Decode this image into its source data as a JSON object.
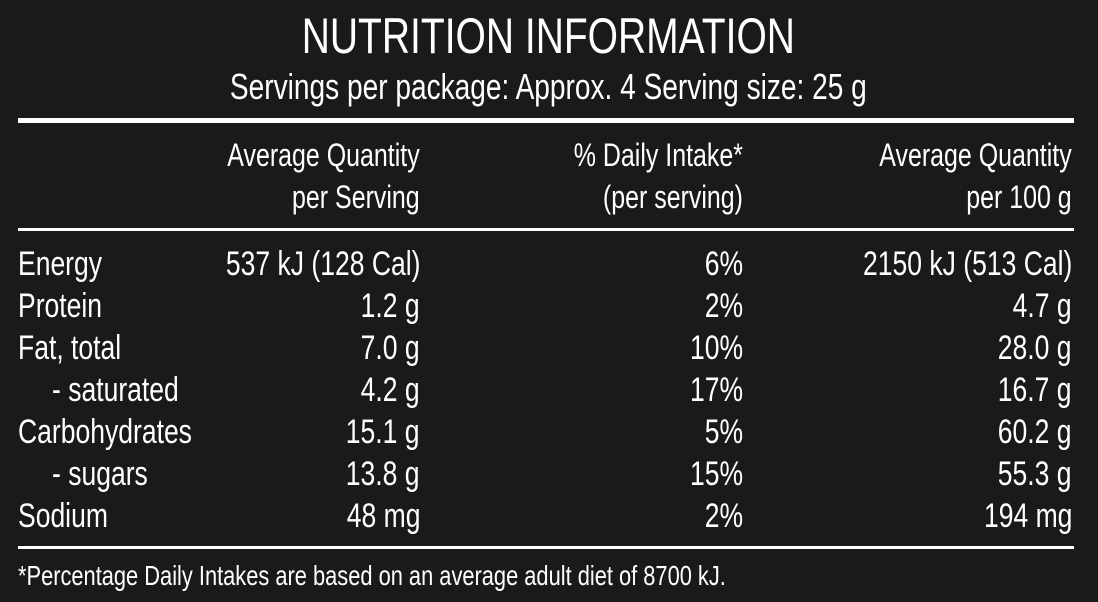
{
  "panel": {
    "title": "NUTRITION INFORMATION",
    "servings": "Servings per package: Approx. 4  Serving size: 25 g"
  },
  "columns": {
    "per_serving": [
      "Average Quantity",
      "per Serving"
    ],
    "daily_intake": [
      "% Daily Intake*",
      "(per serving)"
    ],
    "per_100g": [
      "Average Quantity",
      "per 100 g"
    ]
  },
  "rows": [
    {
      "name": "Energy",
      "indent": false,
      "per_serving": "537 kJ (128 Cal)",
      "daily_intake": "6%",
      "per_100g": "2150 kJ (513 Cal)"
    },
    {
      "name": "Protein",
      "indent": false,
      "per_serving": "1.2 g",
      "daily_intake": "2%",
      "per_100g": "4.7 g"
    },
    {
      "name": "Fat, total",
      "indent": false,
      "per_serving": "7.0 g",
      "daily_intake": "10%",
      "per_100g": "28.0 g"
    },
    {
      "name": "- saturated",
      "indent": true,
      "per_serving": "4.2 g",
      "daily_intake": "17%",
      "per_100g": "16.7 g"
    },
    {
      "name": "Carbohydrates",
      "indent": false,
      "per_serving": "15.1 g",
      "daily_intake": "5%",
      "per_100g": "60.2 g"
    },
    {
      "name": "- sugars",
      "indent": true,
      "per_serving": "13.8 g",
      "daily_intake": "15%",
      "per_100g": "55.3 g"
    },
    {
      "name": "Sodium",
      "indent": false,
      "per_serving": "48 mg",
      "daily_intake": "2%",
      "per_100g": "194 mg"
    }
  ],
  "footnote": "*Percentage Daily Intakes are based on an average adult diet of 8700 kJ.",
  "colors": {
    "background": "#1a1a1a",
    "text": "#ffffff"
  }
}
